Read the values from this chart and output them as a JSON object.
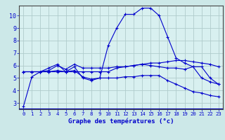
{
  "title": "Graphe des températures (°c)",
  "background_color": "#cce8e8",
  "plot_bg_color": "#d8f0f0",
  "grid_color": "#b0cccc",
  "line_color": "#0000cc",
  "axis_label_color": "#0000cc",
  "bottom_bar_color": "#0000aa",
  "ylim": [
    2.5,
    10.8
  ],
  "xlim": [
    -0.5,
    23.5
  ],
  "yticks": [
    3,
    4,
    5,
    6,
    7,
    8,
    9,
    10
  ],
  "xticks": [
    0,
    1,
    2,
    3,
    4,
    5,
    6,
    7,
    8,
    9,
    10,
    11,
    12,
    13,
    14,
    15,
    16,
    17,
    18,
    19,
    20,
    21,
    22,
    23
  ],
  "series1": [
    2.7,
    5.1,
    5.5,
    5.8,
    6.1,
    5.5,
    5.9,
    5.0,
    4.8,
    5.0,
    7.6,
    9.0,
    10.1,
    10.1,
    10.6,
    10.6,
    10.0,
    8.3,
    6.6,
    6.2,
    5.9,
    5.9,
    5.0,
    4.5
  ],
  "series2": [
    5.5,
    5.5,
    5.5,
    5.5,
    5.5,
    5.5,
    5.5,
    5.5,
    5.5,
    5.5,
    5.5,
    5.8,
    5.9,
    6.0,
    6.1,
    6.2,
    6.2,
    6.3,
    6.4,
    6.4,
    6.3,
    6.2,
    6.1,
    5.9
  ],
  "series3": [
    5.5,
    5.5,
    5.5,
    5.5,
    5.6,
    5.5,
    5.6,
    5.1,
    4.9,
    5.0,
    5.0,
    5.0,
    5.1,
    5.1,
    5.2,
    5.2,
    5.2,
    4.8,
    4.5,
    4.2,
    3.9,
    3.8,
    3.6,
    3.5
  ],
  "series4": [
    5.5,
    5.5,
    5.5,
    5.6,
    6.0,
    5.7,
    6.1,
    5.8,
    5.8,
    5.8,
    5.8,
    5.9,
    5.9,
    6.0,
    6.1,
    6.0,
    5.9,
    5.8,
    5.8,
    5.7,
    5.9,
    5.0,
    4.7,
    4.5
  ],
  "xtick_fontsize": 5.2,
  "ytick_fontsize": 6.0,
  "xlabel_fontsize": 6.5
}
